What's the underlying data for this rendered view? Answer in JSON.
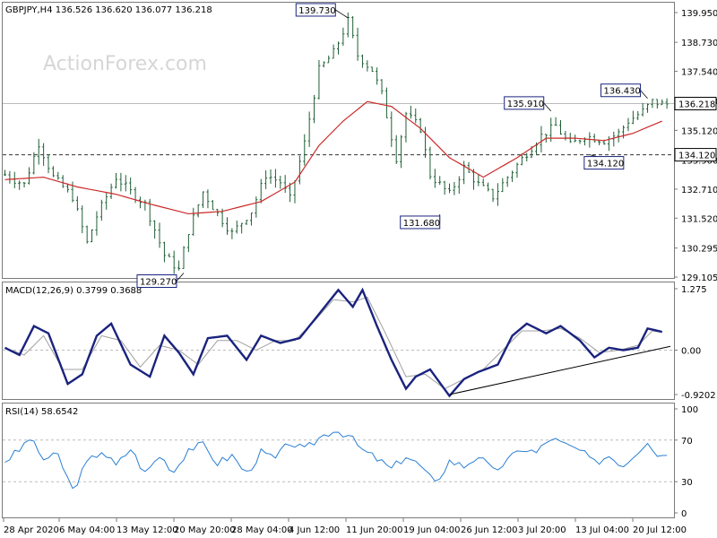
{
  "header": {
    "symbol_info": "GBPJPY,H4  136.526 136.620 136.077 136.218",
    "watermark": "ActionForex.com"
  },
  "colors": {
    "candle": "#1f5f35",
    "ma": "#cc2a2a",
    "macd": "#1a237e",
    "signal": "#a0a0a0",
    "rsi": "#2a7fd4",
    "grid": "#bcbcbc",
    "frame": "#7a7a7a"
  },
  "chart_data": [
    {
      "type": "candlestick",
      "panel": "price",
      "ylim": [
        129.105,
        139.95
      ],
      "yticks": [
        "139.950",
        "138.730",
        "137.540",
        "136.330",
        "135.120",
        "133.900",
        "132.710",
        "131.520",
        "130.295",
        "129.105"
      ],
      "current_price": "136.218",
      "horizontal_level": "134.120",
      "annotations": [
        {
          "label": "139.730",
          "value": 139.73
        },
        {
          "label": "129.270",
          "value": 129.27
        },
        {
          "label": "131.680",
          "value": 131.68
        },
        {
          "label": "135.910",
          "value": 135.91
        },
        {
          "label": "134.120",
          "value": 134.12
        },
        {
          "label": "136.430",
          "value": 136.43
        }
      ],
      "xlabels": [
        "28 Apr 2020",
        "6 May 04:00",
        "13 May 12:00",
        "20 May 20:00",
        "28 May 04:00",
        "4 Jun 12:00",
        "11 Jun 20:00",
        "19 Jun 04:00",
        "26 Jun 12:00",
        "3 Jul 20:00",
        "13 Jul 04:00",
        "20 Jul 12:00"
      ],
      "close_path": [
        [
          0,
          133.3
        ],
        [
          4,
          132.9
        ],
        [
          7,
          134.6
        ],
        [
          10,
          133.2
        ],
        [
          14,
          132.4
        ],
        [
          17,
          130.5
        ],
        [
          19,
          131.6
        ],
        [
          23,
          133.2
        ],
        [
          26,
          132.6
        ],
        [
          29,
          132.1
        ],
        [
          33,
          130.0
        ],
        [
          36,
          129.4
        ],
        [
          38,
          131.0
        ],
        [
          41,
          132.6
        ],
        [
          44,
          131.7
        ],
        [
          47,
          130.9
        ],
        [
          51,
          131.8
        ],
        [
          54,
          133.3
        ],
        [
          57,
          133.0
        ],
        [
          59,
          132.3
        ],
        [
          62,
          134.6
        ],
        [
          65,
          137.6
        ],
        [
          68,
          138.3
        ],
        [
          71,
          139.6
        ],
        [
          73,
          138.2
        ],
        [
          76,
          137.6
        ],
        [
          78,
          136.6
        ],
        [
          81,
          134.0
        ],
        [
          83,
          135.8
        ],
        [
          86,
          135.2
        ],
        [
          88,
          133.3
        ],
        [
          92,
          132.5
        ],
        [
          95,
          133.6
        ],
        [
          98,
          132.9
        ],
        [
          101,
          132.4
        ],
        [
          104,
          133.2
        ],
        [
          108,
          134.2
        ],
        [
          111,
          134.9
        ],
        [
          114,
          135.3
        ],
        [
          117,
          134.5
        ],
        [
          120,
          134.9
        ],
        [
          124,
          134.7
        ],
        [
          127,
          135.0
        ],
        [
          129,
          135.5
        ],
        [
          132,
          135.9
        ],
        [
          134,
          136.3
        ],
        [
          136,
          136.2
        ]
      ],
      "ma_path": [
        [
          0,
          133.1
        ],
        [
          8,
          133.2
        ],
        [
          15,
          132.8
        ],
        [
          23,
          132.5
        ],
        [
          30,
          132.1
        ],
        [
          38,
          131.7
        ],
        [
          45,
          131.8
        ],
        [
          53,
          132.2
        ],
        [
          60,
          133.0
        ],
        [
          65,
          134.5
        ],
        [
          70,
          135.5
        ],
        [
          75,
          136.3
        ],
        [
          80,
          136.1
        ],
        [
          86,
          135.2
        ],
        [
          92,
          134.0
        ],
        [
          99,
          133.2
        ],
        [
          106,
          134.0
        ],
        [
          112,
          134.8
        ],
        [
          118,
          134.8
        ],
        [
          124,
          134.7
        ],
        [
          130,
          135.0
        ],
        [
          136,
          135.5
        ]
      ]
    },
    {
      "type": "line",
      "panel": "macd",
      "title": "MACD(12,26,9) 0.3799 0.3688",
      "ylim": [
        -0.9202,
        1.275
      ],
      "yticks": [
        "1.275",
        "0.00",
        "-0.9202"
      ],
      "series": [
        {
          "name": "MACD",
          "values": [
            [
              0,
              0.05
            ],
            [
              3,
              -0.1
            ],
            [
              6,
              0.5
            ],
            [
              9,
              0.35
            ],
            [
              13,
              -0.7
            ],
            [
              16,
              -0.5
            ],
            [
              19,
              0.3
            ],
            [
              22,
              0.55
            ],
            [
              26,
              -0.3
            ],
            [
              30,
              -0.55
            ],
            [
              33,
              0.3
            ],
            [
              36,
              -0.05
            ],
            [
              39,
              -0.5
            ],
            [
              42,
              0.25
            ],
            [
              46,
              0.3
            ],
            [
              50,
              -0.2
            ],
            [
              53,
              0.3
            ],
            [
              57,
              0.15
            ],
            [
              61,
              0.25
            ],
            [
              65,
              0.75
            ],
            [
              69,
              1.25
            ],
            [
              72,
              0.9
            ],
            [
              74,
              1.25
            ],
            [
              77,
              0.5
            ],
            [
              80,
              -0.2
            ],
            [
              83,
              -0.8
            ],
            [
              85,
              -0.55
            ],
            [
              88,
              -0.4
            ],
            [
              92,
              -0.95
            ],
            [
              95,
              -0.6
            ],
            [
              98,
              -0.45
            ],
            [
              102,
              -0.3
            ],
            [
              105,
              0.3
            ],
            [
              108,
              0.55
            ],
            [
              112,
              0.35
            ],
            [
              115,
              0.5
            ],
            [
              119,
              0.2
            ],
            [
              122,
              -0.15
            ],
            [
              125,
              0.05
            ],
            [
              128,
              0.0
            ],
            [
              131,
              0.05
            ],
            [
              133,
              0.45
            ],
            [
              136,
              0.38
            ]
          ]
        },
        {
          "name": "Signal",
          "values": [
            [
              0,
              0.05
            ],
            [
              4,
              -0.1
            ],
            [
              8,
              0.3
            ],
            [
              12,
              -0.4
            ],
            [
              16,
              -0.4
            ],
            [
              20,
              0.3
            ],
            [
              24,
              0.2
            ],
            [
              28,
              -0.35
            ],
            [
              32,
              0.1
            ],
            [
              36,
              0.0
            ],
            [
              40,
              -0.3
            ],
            [
              44,
              0.2
            ],
            [
              48,
              0.2
            ],
            [
              52,
              0.0
            ],
            [
              56,
              0.2
            ],
            [
              60,
              0.2
            ],
            [
              64,
              0.6
            ],
            [
              68,
              1.05
            ],
            [
              72,
              1.0
            ],
            [
              75,
              1.1
            ],
            [
              79,
              0.3
            ],
            [
              83,
              -0.55
            ],
            [
              87,
              -0.5
            ],
            [
              91,
              -0.8
            ],
            [
              95,
              -0.6
            ],
            [
              99,
              -0.4
            ],
            [
              103,
              0.0
            ],
            [
              107,
              0.4
            ],
            [
              111,
              0.4
            ],
            [
              115,
              0.45
            ],
            [
              119,
              0.25
            ],
            [
              123,
              -0.05
            ],
            [
              127,
              0.0
            ],
            [
              131,
              0.1
            ],
            [
              134,
              0.4
            ],
            [
              136,
              0.37
            ]
          ]
        }
      ],
      "trendline": [
        [
          92,
          -0.92
        ],
        [
          138,
          0.08
        ]
      ]
    },
    {
      "type": "line",
      "panel": "rsi",
      "title": "RSI(14) 58.6542",
      "ylim": [
        0,
        100
      ],
      "yticks": [
        "100",
        "70",
        "30",
        "0"
      ],
      "series": [
        {
          "name": "RSI",
          "values": [
            [
              0,
              50
            ],
            [
              3,
              60
            ],
            [
              5,
              72
            ],
            [
              8,
              52
            ],
            [
              11,
              55
            ],
            [
              14,
              22
            ],
            [
              17,
              48
            ],
            [
              20,
              60
            ],
            [
              23,
              45
            ],
            [
              26,
              62
            ],
            [
              29,
              38
            ],
            [
              32,
              55
            ],
            [
              35,
              40
            ],
            [
              38,
              62
            ],
            [
              41,
              65
            ],
            [
              44,
              48
            ],
            [
              47,
              55
            ],
            [
              50,
              38
            ],
            [
              53,
              58
            ],
            [
              56,
              52
            ],
            [
              59,
              68
            ],
            [
              62,
              60
            ],
            [
              65,
              72
            ],
            [
              68,
              80
            ],
            [
              71,
              75
            ],
            [
              74,
              60
            ],
            [
              77,
              52
            ],
            [
              80,
              42
            ],
            [
              83,
              55
            ],
            [
              86,
              45
            ],
            [
              89,
              28
            ],
            [
              92,
              50
            ],
            [
              95,
              45
            ],
            [
              98,
              55
            ],
            [
              101,
              40
            ],
            [
              104,
              50
            ],
            [
              107,
              62
            ],
            [
              110,
              58
            ],
            [
              113,
              72
            ],
            [
              116,
              65
            ],
            [
              119,
              60
            ],
            [
              122,
              48
            ],
            [
              125,
              55
            ],
            [
              128,
              46
            ],
            [
              131,
              60
            ],
            [
              133,
              70
            ],
            [
              135,
              55
            ],
            [
              137,
              59
            ]
          ]
        }
      ]
    }
  ]
}
